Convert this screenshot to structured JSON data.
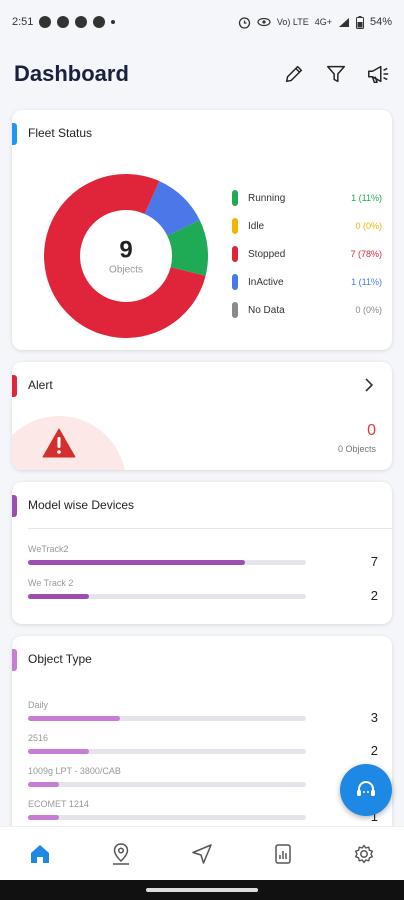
{
  "status_bar": {
    "time": "2:51",
    "net_label": "Vo) LTE",
    "signal_label": "4G+",
    "battery": "54%"
  },
  "header": {
    "title": "Dashboard"
  },
  "fleet": {
    "title": "Fleet Status",
    "accent": "#2196f3",
    "total": "9",
    "total_label": "Objects",
    "legend": [
      {
        "label": "Running",
        "value": "1 (11%)",
        "color": "#1faa55"
      },
      {
        "label": "Idle",
        "value": "0 (0%)",
        "color": "#f4b400"
      },
      {
        "label": "Stopped",
        "value": "7 (78%)",
        "color": "#e0243a"
      },
      {
        "label": "InActive",
        "value": "1 (11%)",
        "color": "#4a78e8"
      },
      {
        "label": "No Data",
        "value": "0 (0%)",
        "color": "#8a8a8a"
      }
    ],
    "chart_data": {
      "type": "pie",
      "categories": [
        "Running",
        "Idle",
        "Stopped",
        "InActive",
        "No Data"
      ],
      "values": [
        1,
        0,
        7,
        1,
        0
      ]
    }
  },
  "alert": {
    "title": "Alert",
    "accent": "#e0243a",
    "count": "0",
    "sub": "0 Objects"
  },
  "model": {
    "title": "Model wise Devices",
    "accent": "#9c4fb0",
    "items": [
      {
        "label": "WeTrack2",
        "value": "7",
        "fraction": 0.78
      },
      {
        "label": "We Track 2",
        "value": "2",
        "fraction": 0.22
      }
    ]
  },
  "object_type": {
    "title": "Object Type",
    "accent": "#c77dd6",
    "items": [
      {
        "label": "Daily",
        "value": "3",
        "fraction": 0.33
      },
      {
        "label": "2516",
        "value": "2",
        "fraction": 0.22
      },
      {
        "label": "1009g LPT - 3800/CAB",
        "value": "1",
        "fraction": 0.11
      },
      {
        "label": "ECOMET 1214",
        "value": "1",
        "fraction": 0.11
      }
    ]
  },
  "colors": {
    "primary": "#1e88e5",
    "model_bar": "#9c4fb0",
    "object_bar": "#c77dd6"
  },
  "icons": {
    "header": [
      "pencil-icon",
      "filter-icon",
      "megaphone-icon"
    ],
    "nav": [
      "home-icon",
      "map-pin-icon",
      "navigation-icon",
      "report-icon",
      "settings-icon"
    ],
    "fab": "support-icon"
  }
}
